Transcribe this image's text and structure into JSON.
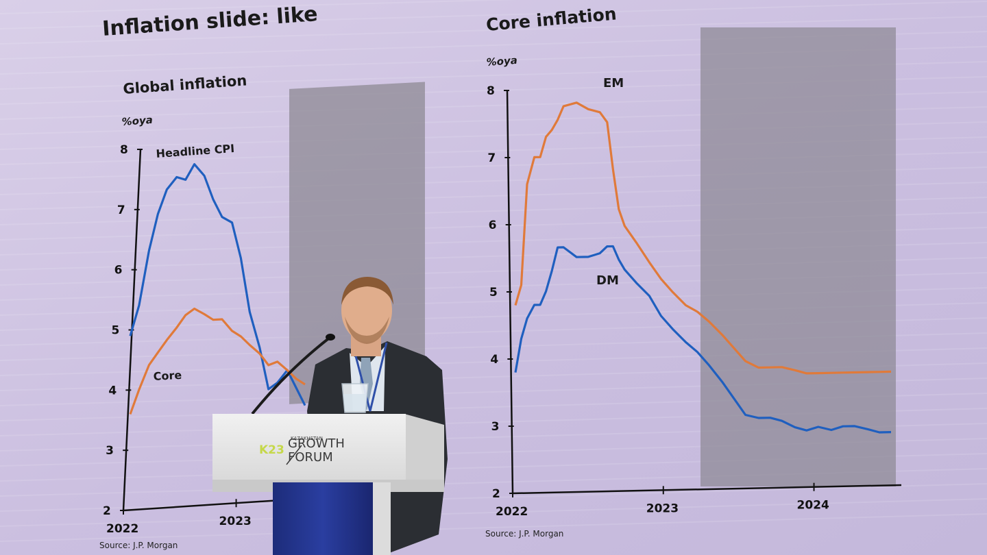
{
  "slide": {
    "title": "Inflation slide: like",
    "left_chart": {
      "title": "Global inflation",
      "unit": "%oya",
      "series_labels": [
        "Headline CPI",
        "Core"
      ],
      "y_ticks": [
        "8",
        "7",
        "6",
        "5",
        "4",
        "3",
        "2"
      ],
      "x_ticks": [
        "2022",
        "2023"
      ],
      "source": "Source: J.P. Morgan"
    },
    "right_chart": {
      "title": "Core inflation",
      "unit": "%oya",
      "series_labels": [
        "EM",
        "DM"
      ],
      "y_ticks": [
        "8",
        "7",
        "6",
        "5",
        "4",
        "3",
        "2"
      ],
      "x_ticks": [
        "2022",
        "2023",
        "2024"
      ],
      "source": "Source: J.P. Morgan"
    }
  },
  "podium": {
    "logo_prefix": "K23",
    "logo_small": "KAZAKHSTAN",
    "logo_line1": "GROWTH",
    "logo_line2": "FORUM"
  },
  "chart_data": [
    {
      "type": "line",
      "title": "Global inflation",
      "ylabel": "%oya",
      "ylim": [
        2,
        8
      ],
      "x_ticks": [
        "2022",
        "2023"
      ],
      "series": [
        {
          "name": "Headline CPI",
          "color": "#1f5fbf",
          "x": [
            2022.0,
            2022.08,
            2022.17,
            2022.25,
            2022.33,
            2022.42,
            2022.5,
            2022.58,
            2022.67,
            2022.75,
            2022.83,
            2022.92,
            2023.0,
            2023.08,
            2023.17,
            2023.25,
            2023.33,
            2023.42,
            2023.5,
            2023.58
          ],
          "values": [
            4.9,
            5.4,
            6.3,
            6.9,
            7.3,
            7.5,
            7.45,
            7.7,
            7.5,
            7.1,
            6.8,
            6.7,
            6.1,
            5.2,
            4.6,
            3.9,
            4.0,
            4.2,
            3.9,
            3.6
          ]
        },
        {
          "name": "Core",
          "color": "#e07a3a",
          "x": [
            2022.0,
            2022.08,
            2022.17,
            2022.25,
            2022.33,
            2022.42,
            2022.5,
            2022.58,
            2022.67,
            2022.75,
            2022.83,
            2022.92,
            2023.0,
            2023.08,
            2023.17,
            2023.25,
            2023.33,
            2023.42,
            2023.5,
            2023.58
          ],
          "values": [
            3.6,
            4.0,
            4.4,
            4.6,
            4.8,
            5.0,
            5.2,
            5.3,
            5.2,
            5.1,
            5.1,
            4.9,
            4.8,
            4.65,
            4.5,
            4.3,
            4.35,
            4.2,
            4.05,
            3.95
          ]
        }
      ]
    },
    {
      "type": "line",
      "title": "Core inflation",
      "ylabel": "%oya",
      "ylim": [
        2,
        8
      ],
      "x_ticks": [
        "2022",
        "2023",
        "2024"
      ],
      "series": [
        {
          "name": "EM",
          "color": "#e07a3a",
          "x": [
            2022.0,
            2022.04,
            2022.08,
            2022.13,
            2022.17,
            2022.21,
            2022.25,
            2022.29,
            2022.33,
            2022.42,
            2022.5,
            2022.58,
            2022.63,
            2022.67,
            2022.71,
            2022.75,
            2022.83,
            2022.92,
            2023.0,
            2023.08,
            2023.17,
            2023.25,
            2023.33,
            2023.42,
            2023.5,
            2023.58,
            2023.67,
            2023.75,
            2023.83,
            2023.92,
            2024.0,
            2024.08,
            2024.17,
            2024.25,
            2024.33,
            2024.42,
            2024.5,
            2024.58
          ],
          "values": [
            4.8,
            5.1,
            6.6,
            7.0,
            7.0,
            7.3,
            7.4,
            7.55,
            7.75,
            7.8,
            7.7,
            7.65,
            7.5,
            6.8,
            6.2,
            5.95,
            5.7,
            5.4,
            5.15,
            4.95,
            4.75,
            4.65,
            4.5,
            4.3,
            4.1,
            3.9,
            3.8,
            3.8,
            3.8,
            3.75,
            3.7,
            3.7,
            3.7,
            3.7,
            3.7,
            3.7,
            3.7,
            3.7
          ]
        },
        {
          "name": "DM",
          "color": "#1f5fbf",
          "x": [
            2022.0,
            2022.04,
            2022.08,
            2022.13,
            2022.17,
            2022.21,
            2022.25,
            2022.29,
            2022.33,
            2022.42,
            2022.5,
            2022.58,
            2022.63,
            2022.67,
            2022.71,
            2022.75,
            2022.83,
            2022.92,
            2023.0,
            2023.08,
            2023.17,
            2023.25,
            2023.33,
            2023.42,
            2023.5,
            2023.58,
            2023.67,
            2023.75,
            2023.83,
            2023.92,
            2024.0,
            2024.08,
            2024.17,
            2024.25,
            2024.33,
            2024.42,
            2024.5,
            2024.58
          ],
          "values": [
            3.8,
            4.3,
            4.6,
            4.8,
            4.8,
            5.0,
            5.3,
            5.65,
            5.65,
            5.5,
            5.5,
            5.55,
            5.65,
            5.65,
            5.45,
            5.3,
            5.1,
            4.9,
            4.6,
            4.4,
            4.2,
            4.05,
            3.85,
            3.6,
            3.35,
            3.1,
            3.05,
            3.05,
            3.0,
            2.9,
            2.85,
            2.9,
            2.85,
            2.9,
            2.9,
            2.85,
            2.8,
            2.8
          ]
        }
      ]
    }
  ]
}
